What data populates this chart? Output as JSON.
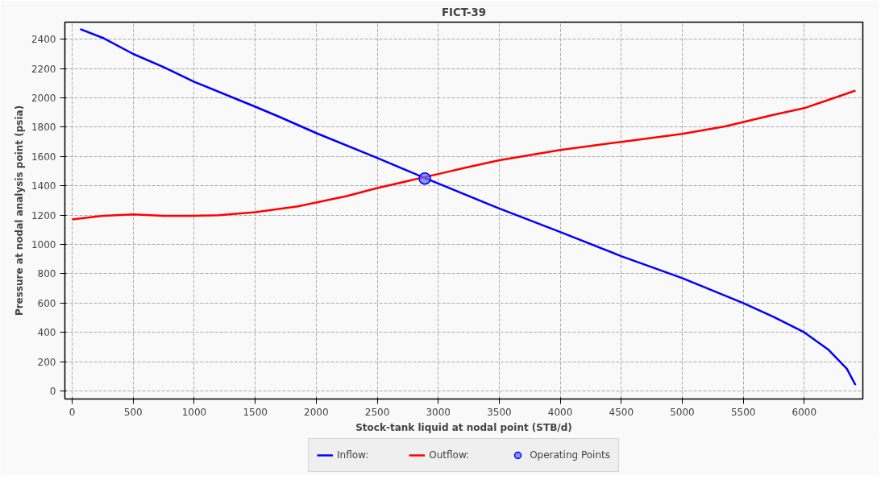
{
  "chart_data": {
    "type": "line",
    "title": "FICT-39",
    "xlabel": "Stock-tank liquid at nodal point (STB/d)",
    "ylabel": "Pressure at nodal analysis point (psia)",
    "xlim": [
      -60,
      6480
    ],
    "ylim": [
      -55,
      2517
    ],
    "xticks": [
      0,
      500,
      1000,
      1500,
      2000,
      2500,
      3000,
      3500,
      4000,
      4500,
      5000,
      5500,
      6000
    ],
    "yticks": [
      0,
      200,
      400,
      600,
      800,
      1000,
      1200,
      1400,
      1600,
      1800,
      2000,
      2200,
      2400
    ],
    "grid": true,
    "legend": "bottom",
    "line_style": "solid",
    "series": [
      {
        "name": "Inflow:",
        "color": "#0000ff",
        "x": [
          66,
          250,
          500,
          750,
          1000,
          1500,
          1700,
          2000,
          2500,
          2900,
          3500,
          4000,
          4500,
          5000,
          5500,
          5750,
          6000,
          6200,
          6350,
          6420
        ],
        "values": [
          2470,
          2410,
          2300,
          2210,
          2110,
          1940,
          1870,
          1760,
          1590,
          1450,
          1245,
          1085,
          920,
          770,
          600,
          505,
          400,
          280,
          150,
          40
        ]
      },
      {
        "name": "Outflow:",
        "color": "#ff0000",
        "x": [
          0,
          250,
          500,
          750,
          1000,
          1200,
          1500,
          1850,
          2250,
          2500,
          3050,
          3200,
          3500,
          4000,
          4500,
          5000,
          5350,
          5750,
          6000,
          6420
        ],
        "values": [
          1170,
          1195,
          1205,
          1195,
          1195,
          1200,
          1220,
          1260,
          1330,
          1385,
          1490,
          1520,
          1575,
          1645,
          1700,
          1755,
          1805,
          1885,
          1930,
          2050
        ]
      },
      {
        "name": "Operating Points",
        "type": "scatter",
        "marker": "circle",
        "color": "#5a6cff",
        "x": [
          2890
        ],
        "values": [
          1450
        ]
      }
    ]
  }
}
